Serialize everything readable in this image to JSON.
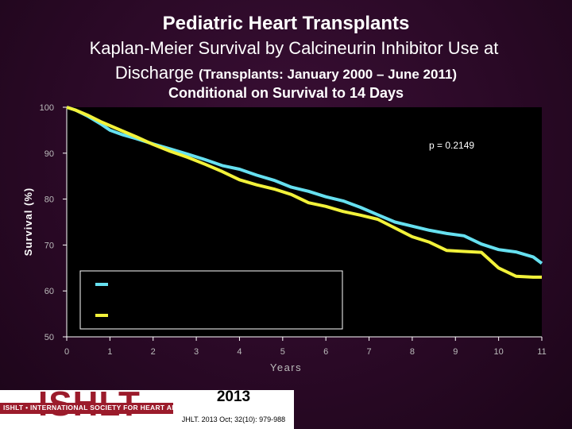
{
  "title": "Pediatric Heart Transplants",
  "subtitle_line1": "Kaplan-Meier Survival by Calcineurin Inhibitor Use at",
  "subtitle_line2_main": "Discharge",
  "subtitle_line2_small": "(Transplants: January 2000 – June 2011)",
  "condition_note": "Conditional on Survival to 14 Days",
  "colors": {
    "background": "#2a0926",
    "plot_bg": "#000000",
    "series_a": "#66e0f0",
    "series_b": "#f2f23a",
    "ishlt_red": "#9b1b2b"
  },
  "chart_data": {
    "type": "line",
    "xlabel": "Years",
    "ylabel": "Survival (%)",
    "xlim": [
      0,
      11
    ],
    "ylim": [
      50,
      100
    ],
    "x_ticks": [
      "0",
      "1",
      "2",
      "3",
      "4",
      "5",
      "6",
      "7",
      "8",
      "9",
      "10",
      "11"
    ],
    "y_ticks": [
      "50",
      "60",
      "70",
      "80",
      "90",
      "100"
    ],
    "grid": false,
    "annotation": "p = 0.2149",
    "legend_placement": "bottom-left",
    "series": [
      {
        "color": "#66e0f0",
        "x": [
          0,
          0.2,
          0.5,
          0.8,
          1.0,
          1.3,
          1.6,
          2.0,
          2.4,
          2.8,
          3.2,
          3.6,
          4.0,
          4.4,
          4.8,
          5.2,
          5.6,
          6.0,
          6.4,
          6.8,
          7.2,
          7.6,
          8.0,
          8.4,
          8.8,
          9.2,
          9.6,
          10.0,
          10.4,
          10.8,
          11.0
        ],
        "values": [
          100,
          99.4,
          98,
          96.3,
          95,
          94,
          93.2,
          92,
          90.9,
          89.8,
          88.6,
          87.3,
          86.5,
          85.2,
          84.1,
          82.6,
          81.7,
          80.5,
          79.6,
          78.2,
          76.6,
          75,
          74.1,
          73.2,
          72.5,
          72,
          70.2,
          69,
          68.5,
          67.4,
          66
        ]
      },
      {
        "color": "#f2f23a",
        "x": [
          0,
          0.2,
          0.5,
          0.8,
          1.0,
          1.3,
          1.6,
          2.0,
          2.4,
          2.8,
          3.2,
          3.6,
          4.0,
          4.4,
          4.8,
          5.2,
          5.6,
          6.0,
          6.4,
          6.8,
          7.2,
          7.6,
          8.0,
          8.4,
          8.8,
          9.2,
          9.6,
          10.0,
          10.4,
          10.8,
          11.0
        ],
        "values": [
          100,
          99.4,
          98.2,
          96.8,
          96,
          94.8,
          93.6,
          91.9,
          90.4,
          89.1,
          87.6,
          86,
          84.2,
          83.1,
          82.2,
          81,
          79.2,
          78.4,
          77.3,
          76.5,
          75.6,
          73.7,
          71.8,
          70.6,
          68.8,
          68.6,
          68.4,
          65,
          63.2,
          63,
          63
        ]
      }
    ]
  },
  "footer": {
    "logo_text": "ISHLT",
    "logo_subtext": "ISHLT • INTERNATIONAL SOCIETY FOR HEART AND LUNG TRANSPLANTATION",
    "year": "2013",
    "citation": "JHLT. 2013 Oct; 32(10): 979-988"
  }
}
